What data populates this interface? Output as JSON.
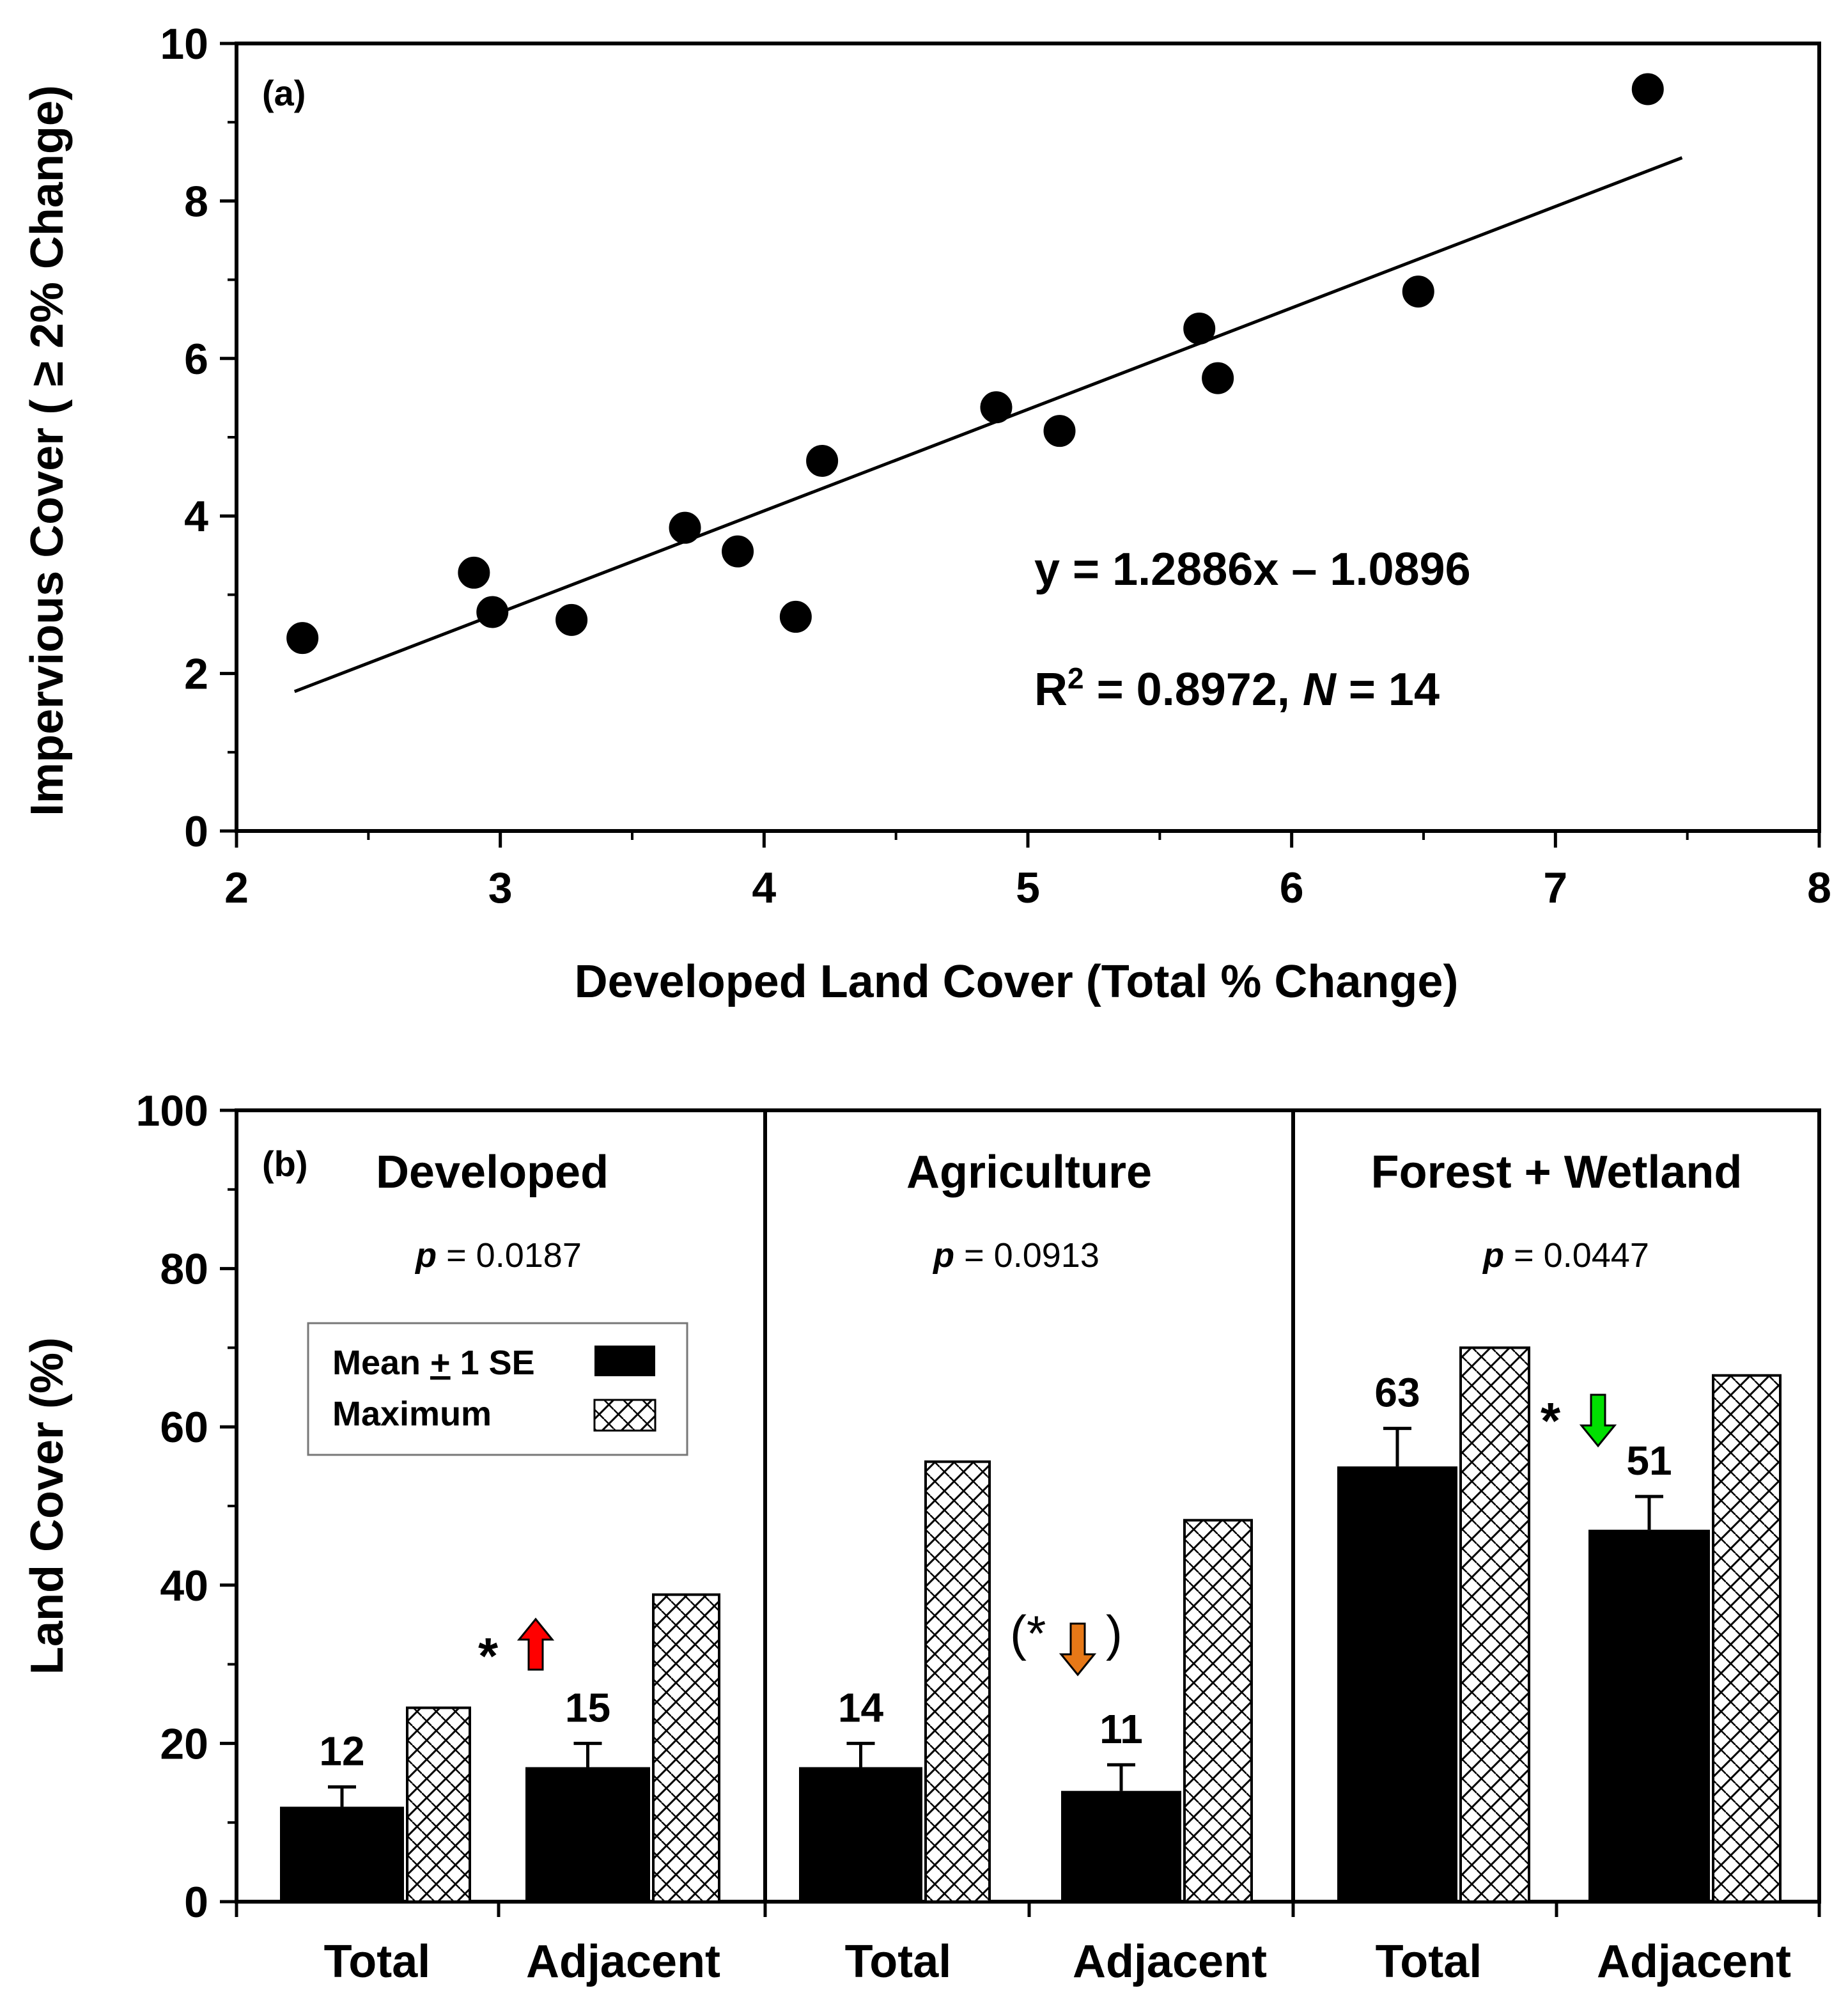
{
  "chart_data": [
    {
      "type": "scatter",
      "panel_label": "(a)",
      "xlabel": "Developed Land Cover (Total % Change)",
      "ylabel": "Impervious Cover ( ≥ 2% Change)",
      "xlim": [
        2,
        8
      ],
      "ylim": [
        0,
        10
      ],
      "xticks": [
        "2",
        "3",
        "4",
        "5",
        "6",
        "7",
        "8"
      ],
      "yticks": [
        "0",
        "2",
        "4",
        "6",
        "8",
        "10"
      ],
      "points": [
        {
          "x": 2.25,
          "y": 2.45
        },
        {
          "x": 2.9,
          "y": 3.28
        },
        {
          "x": 2.97,
          "y": 2.78
        },
        {
          "x": 3.27,
          "y": 2.68
        },
        {
          "x": 3.7,
          "y": 3.85
        },
        {
          "x": 3.9,
          "y": 3.55
        },
        {
          "x": 4.12,
          "y": 2.72
        },
        {
          "x": 4.22,
          "y": 4.7
        },
        {
          "x": 4.88,
          "y": 5.38
        },
        {
          "x": 5.12,
          "y": 5.08
        },
        {
          "x": 5.65,
          "y": 6.38
        },
        {
          "x": 5.72,
          "y": 5.75
        },
        {
          "x": 6.48,
          "y": 6.85
        },
        {
          "x": 7.35,
          "y": 9.42
        }
      ],
      "fit": {
        "slope": 1.2886,
        "intercept": -1.0896,
        "x_range": [
          2.22,
          7.48
        ]
      },
      "equation": "y = 1.2886x – 1.0896",
      "r2_label": "R",
      "r2_sup": "2",
      "r2_rest": " = 0.8972, ",
      "n_label": "N",
      "n_value": " = 14"
    },
    {
      "type": "bar",
      "panel_label": "(b)",
      "ylabel": "Land Cover (%)",
      "ylim": [
        0,
        100
      ],
      "yticks": [
        "0",
        "20",
        "40",
        "60",
        "80",
        "100"
      ],
      "legend": {
        "mean_label": "Mean ± 1 SE",
        "mean_pre": "Mean ",
        "mean_pm": "+",
        "mean_post": " 1 SE",
        "max_label": "Maximum"
      },
      "groups": [
        {
          "title": "Developed",
          "p_label": "p",
          "p_value": " = 0.0187",
          "bars": [
            {
              "category": "Total",
              "mean": 12,
              "se": 2.5,
              "max": 24.5,
              "label": "12"
            },
            {
              "category": "Adjacent",
              "mean": 17,
              "se": 3,
              "max": 38.8,
              "label": "15"
            }
          ],
          "annotation": {
            "text": "*",
            "direction": "up",
            "color": "#ff0000"
          }
        },
        {
          "title": "Agriculture",
          "p_label": "p",
          "p_value": " = 0.0913",
          "bars": [
            {
              "category": "Total",
              "mean": 17,
              "se": 3,
              "max": 55.6,
              "label": "14"
            },
            {
              "category": "Adjacent",
              "mean": 14,
              "se": 3.3,
              "max": 48.2,
              "label": "11"
            }
          ],
          "annotation": {
            "text": "(*",
            "close": ")",
            "direction": "down",
            "color": "#e67817"
          }
        },
        {
          "title": "Forest + Wetland",
          "p_label": "p",
          "p_value": " = 0.0447",
          "bars": [
            {
              "category": "Total",
              "mean": 55,
              "se": 4.8,
              "max": 70,
              "label": "63"
            },
            {
              "category": "Adjacent",
              "mean": 47,
              "se": 4.2,
              "max": 66.5,
              "label": "51"
            }
          ],
          "annotation": {
            "text": "*",
            "direction": "down",
            "color": "#00e000"
          }
        }
      ]
    }
  ]
}
